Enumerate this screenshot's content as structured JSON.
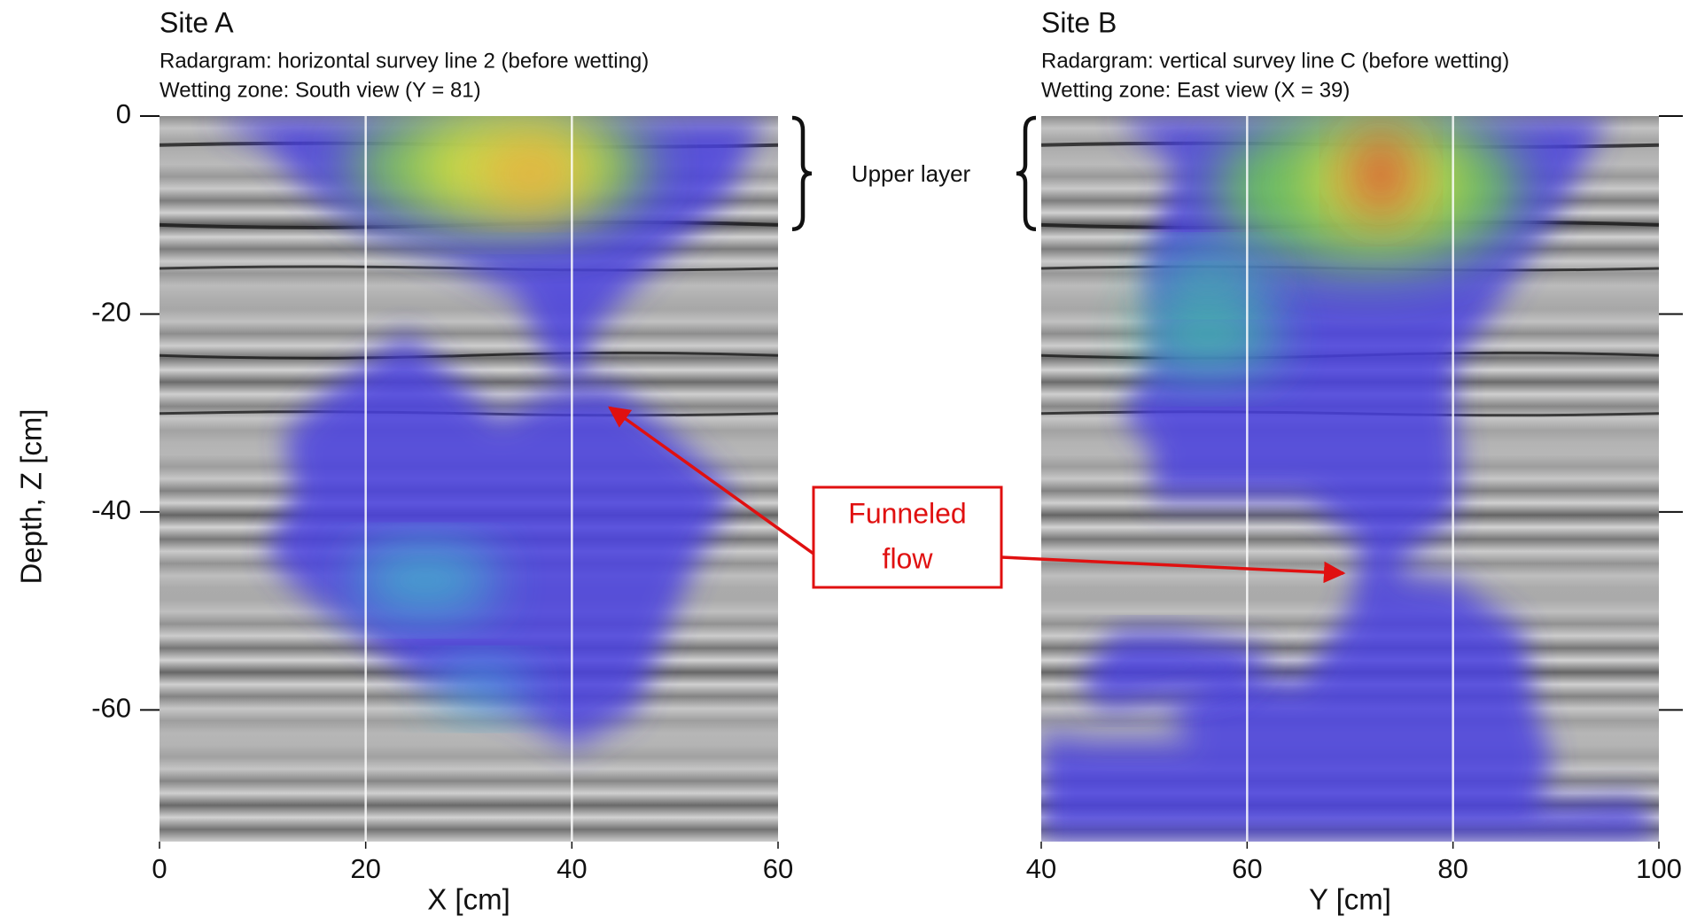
{
  "chart_data": [
    {
      "type": "radargram",
      "title": "Site A",
      "subtitle": [
        "Radargram: horizontal survey line 2 (before wetting)",
        "Wetting zone: South view (Y = 81)"
      ],
      "xlabel": "X [cm]",
      "ylabel": "Depth, Z [cm]",
      "xlim": [
        0,
        60
      ],
      "xticks": [
        0,
        20,
        40,
        60
      ],
      "ylim": [
        -73.3,
        0
      ],
      "yticks": [
        0,
        -20,
        -40,
        -60
      ],
      "grid": "x",
      "yaxis_side": "left",
      "ytick_labels": true,
      "annotation": "Upper layer"
    },
    {
      "type": "radargram",
      "title": "Site B",
      "subtitle": [
        "Radargram: vertical survey line C (before wetting)",
        "Wetting zone: East view (X = 39)"
      ],
      "xlabel": "Y [cm]",
      "xlim": [
        40,
        100
      ],
      "xticks": [
        40,
        60,
        80,
        100
      ],
      "ylim": [
        -73.3,
        0
      ],
      "yticks": [
        0,
        -20,
        -40,
        -60
      ],
      "grid": "x",
      "yaxis_side": "right",
      "ytick_labels": false
    }
  ],
  "callout": [
    "Funneled",
    "flow"
  ]
}
